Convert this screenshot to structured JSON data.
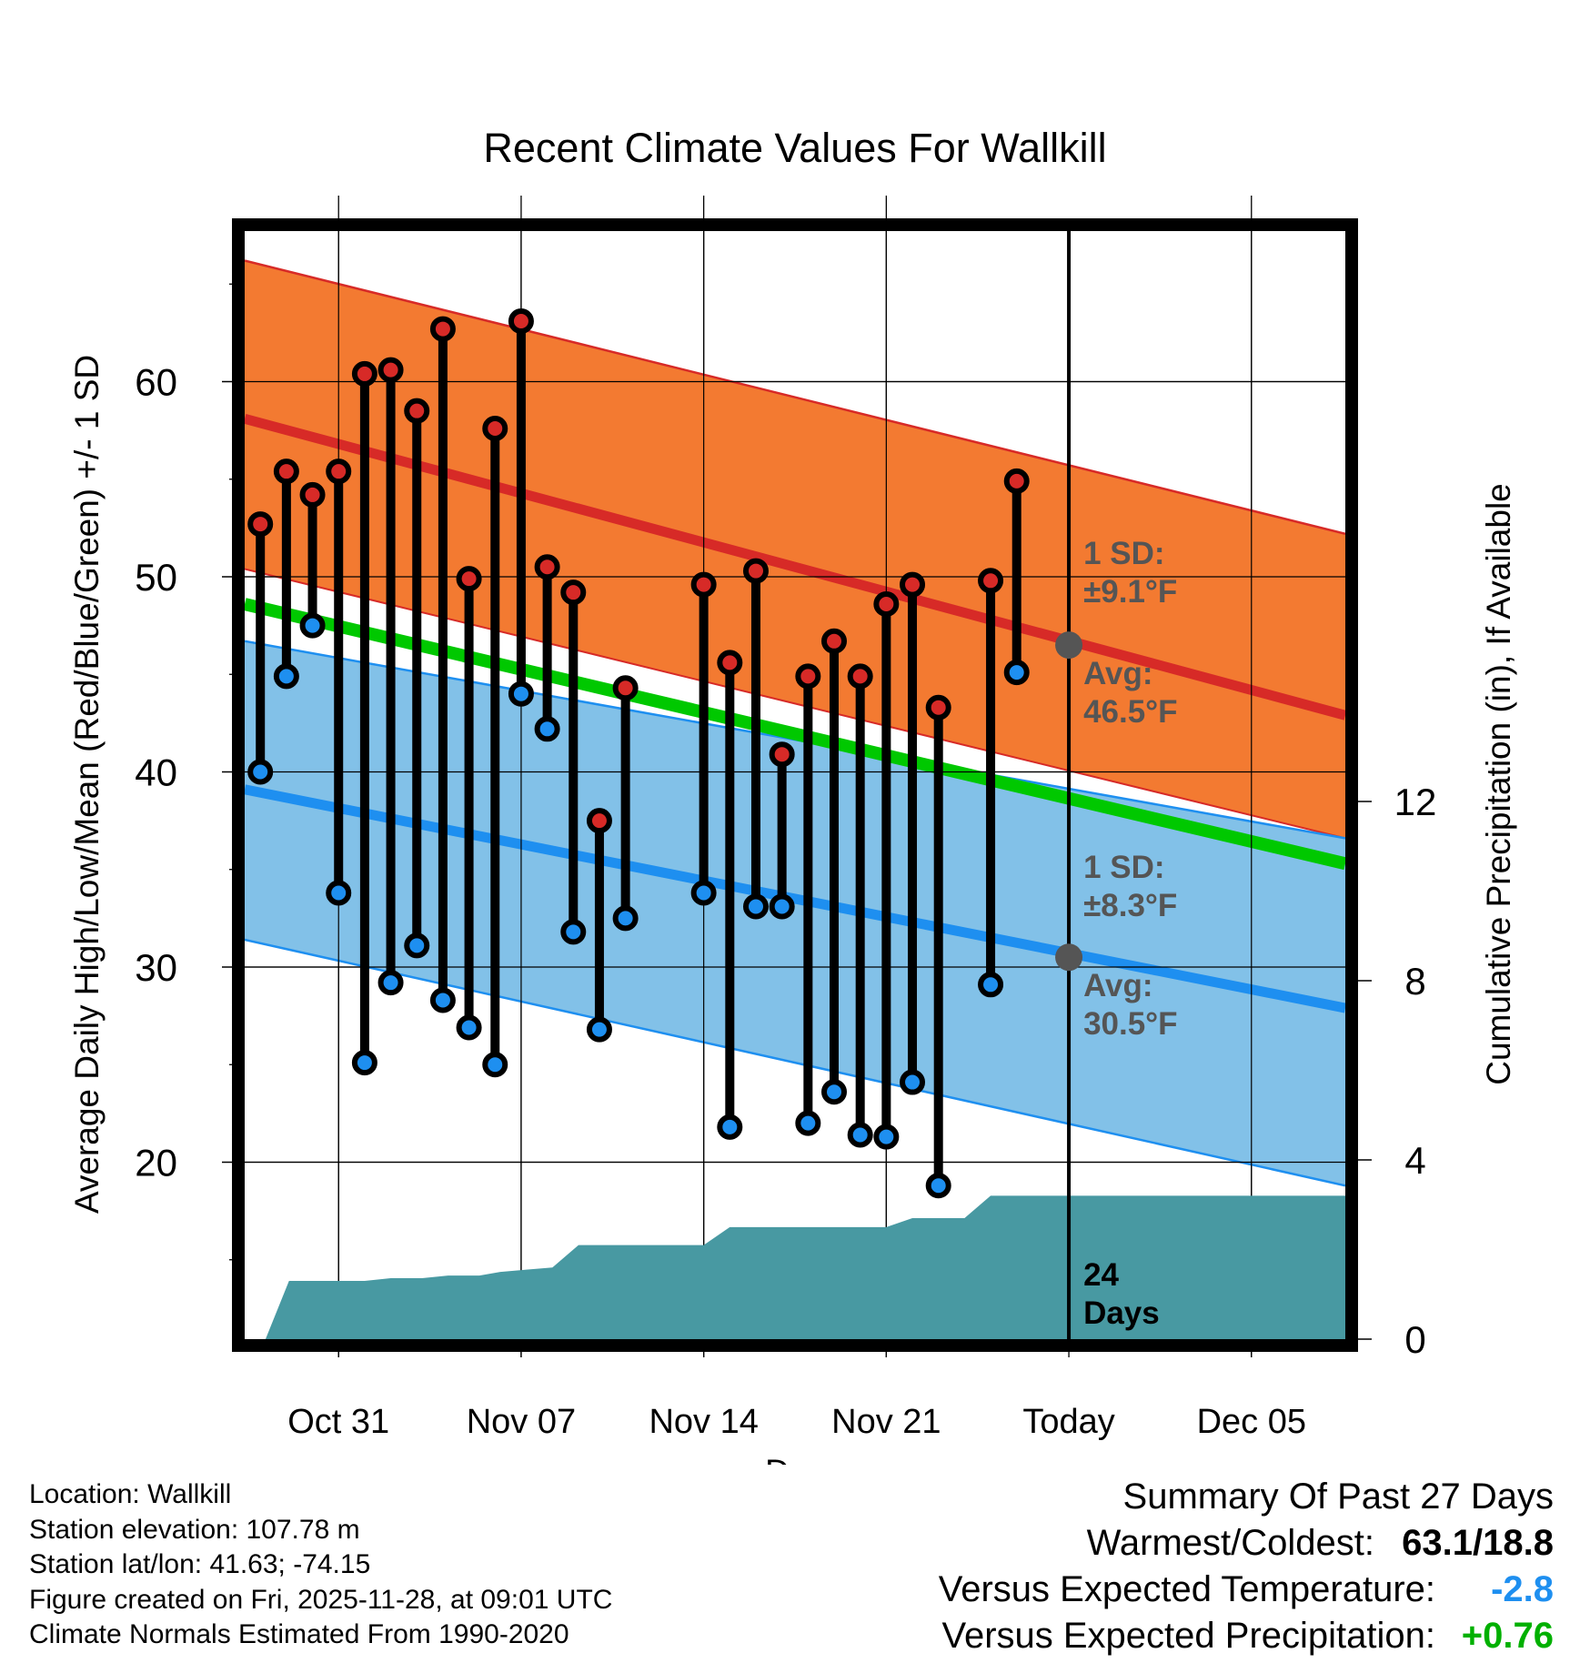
{
  "chart_data": {
    "type": "line",
    "title": "Recent Climate Values For Wallkill",
    "xlabel": "Day",
    "ylabel": "Average Daily High/Low/Mean (Red/Blue/Green) +/- 1 SD",
    "ylabel_right": "Cumulative Precipitation (in), If Available",
    "ylim": [
      10,
      68
    ],
    "ylim_right": [
      0,
      32
    ],
    "xlim": [
      -1.6,
      40.6
    ],
    "x_tick_labels": [
      {
        "day": 2,
        "label": "Oct 31"
      },
      {
        "day": 9,
        "label": "Nov 07"
      },
      {
        "day": 16,
        "label": "Nov 14"
      },
      {
        "day": 23,
        "label": "Nov 21"
      },
      {
        "day": 30,
        "label": "Today"
      },
      {
        "day": 37,
        "label": "Dec 05"
      }
    ],
    "y_ticks_left": [
      20,
      30,
      40,
      50,
      60
    ],
    "y_ticks_right": [
      0,
      4,
      8,
      12
    ],
    "today_day": 30,
    "normal_high": {
      "x": [
        -1.6,
        40.6
      ],
      "mean": [
        58.1,
        42.9
      ],
      "upper": [
        66.2,
        52.2
      ],
      "lower": [
        50.4,
        36.6
      ]
    },
    "normal_low": {
      "x": [
        -1.6,
        40.6
      ],
      "mean": [
        39.1,
        27.9
      ],
      "upper": [
        46.7,
        36.6
      ],
      "lower": [
        31.4,
        18.8
      ]
    },
    "normal_mean": {
      "x": [
        -1.6,
        40.6
      ],
      "values": [
        48.6,
        35.3
      ]
    },
    "daily": [
      {
        "day": -1,
        "high": 52.7,
        "low": 40.0
      },
      {
        "day": 0,
        "high": 55.4,
        "low": 44.9
      },
      {
        "day": 1,
        "high": 54.2,
        "low": 47.5
      },
      {
        "day": 2,
        "high": 55.4,
        "low": 33.8
      },
      {
        "day": 3,
        "high": 60.4,
        "low": 25.1
      },
      {
        "day": 4,
        "high": 60.6,
        "low": 29.2
      },
      {
        "day": 5,
        "high": 58.5,
        "low": 31.1
      },
      {
        "day": 6,
        "high": 62.7,
        "low": 28.3
      },
      {
        "day": 7,
        "high": 49.9,
        "low": 26.9
      },
      {
        "day": 8,
        "high": 57.6,
        "low": 25.0
      },
      {
        "day": 9,
        "high": 63.1,
        "low": 44.0
      },
      {
        "day": 10,
        "high": 50.5,
        "low": 42.2
      },
      {
        "day": 11,
        "high": 49.2,
        "low": 31.8
      },
      {
        "day": 12,
        "high": 37.5,
        "low": 26.8
      },
      {
        "day": 13,
        "high": 44.3,
        "low": 32.5
      },
      {
        "day": 16,
        "high": 49.6,
        "low": 33.8
      },
      {
        "day": 17,
        "high": 45.6,
        "low": 21.8
      },
      {
        "day": 18,
        "high": 50.3,
        "low": 33.1
      },
      {
        "day": 19,
        "high": 40.9,
        "low": 33.1
      },
      {
        "day": 20,
        "high": 44.9,
        "low": 22.0
      },
      {
        "day": 21,
        "high": 46.7,
        "low": 23.6
      },
      {
        "day": 22,
        "high": 44.9,
        "low": 21.4
      },
      {
        "day": 23,
        "high": 48.6,
        "low": 21.3
      },
      {
        "day": 24,
        "high": 49.6,
        "low": 24.1
      },
      {
        "day": 25,
        "high": 43.3,
        "low": 18.8
      },
      {
        "day": 27,
        "high": 49.8,
        "low": 29.1
      },
      {
        "day": 28,
        "high": 54.9,
        "low": 45.1
      }
    ],
    "precipitation": {
      "x": [
        -1.6,
        -0.8,
        0.1,
        1.2,
        3.0,
        4.0,
        5.2,
        6.2,
        7.4,
        8.2,
        9.2,
        10.2,
        11.2,
        12.2,
        16.0,
        17.0,
        18.0,
        23.0,
        24.0,
        25.0,
        26.0,
        27.0,
        40.6
      ],
      "values": [
        0.0,
        0.0,
        1.3,
        1.3,
        1.3,
        1.36,
        1.36,
        1.42,
        1.42,
        1.5,
        1.55,
        1.6,
        2.1,
        2.1,
        2.1,
        2.5,
        2.5,
        2.5,
        2.7,
        2.7,
        2.7,
        3.2,
        3.2
      ]
    },
    "annotations": {
      "high_sd_label": "1 SD:",
      "high_sd_value": "±9.1°F",
      "high_avg_label": "Avg:",
      "high_avg_value": "46.5°F",
      "high_avg_point": 46.5,
      "low_sd_label": "1 SD:",
      "low_sd_value": "±8.3°F",
      "low_avg_label": "Avg:",
      "low_avg_value": "30.5°F",
      "low_avg_point": 30.5,
      "precip_days_1": "24",
      "precip_days_2": "Days"
    }
  },
  "colors": {
    "high_band": "#f37a31",
    "high_line": "#d72a27",
    "low_band": "#82c1e8",
    "low_line": "#1e8ff0",
    "mean_line": "#00c800",
    "overlap": "#951315",
    "precip": "#4899a2",
    "high_dot": "#d72a27",
    "low_dot": "#1e8ff0",
    "annotation": "#555555",
    "positive": "#00b000",
    "negative": "#1e8ff0"
  },
  "info": {
    "location": "Location: Wallkill",
    "elevation": "Station elevation: 107.78 m",
    "latlon": "Station lat/lon: 41.63; -74.15",
    "created": "Figure created on Fri, 2025-11-28, at 09:01 UTC",
    "normals": "Climate Normals Estimated From 1990-2020"
  },
  "summary": {
    "title": "Summary Of Past 27 Days",
    "warm_cold_label": "Warmest/Coldest:",
    "warm_cold_value": "63.1/18.8",
    "temp_label": "Versus Expected Temperature:",
    "temp_value": "-2.8",
    "precip_label": "Versus Expected Precipitation:",
    "precip_value": "+0.76"
  }
}
